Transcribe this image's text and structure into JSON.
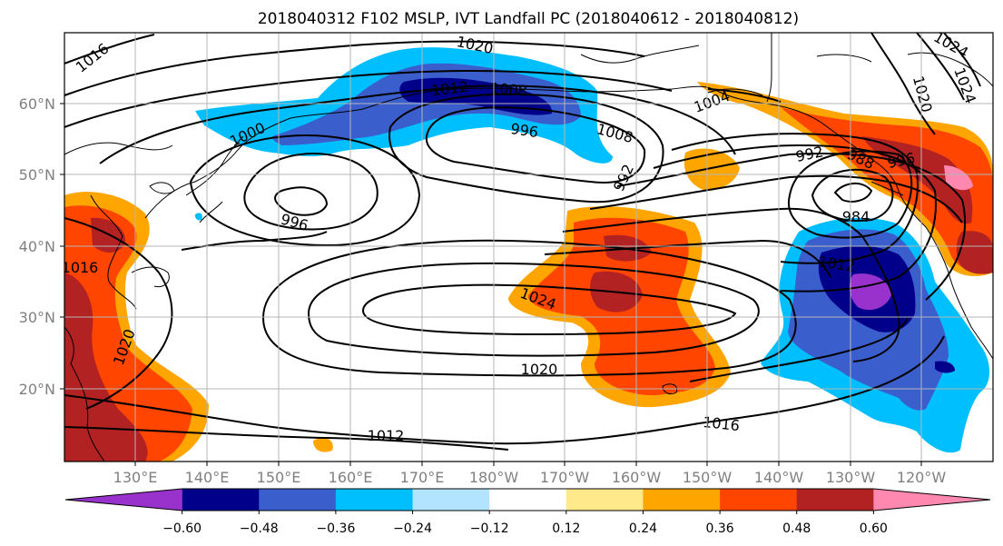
{
  "title": "2018040312 F102 MSLP, IVT Landfall PC (2018040612 - 2018040812)",
  "map": {
    "lon_ticks": [
      "130°E",
      "140°E",
      "150°E",
      "160°E",
      "170°E",
      "180°W",
      "170°W",
      "160°W",
      "150°W",
      "140°W",
      "130°W",
      "120°W"
    ],
    "lat_ticks": [
      "20°N",
      "30°N",
      "40°N",
      "50°N",
      "60°N"
    ],
    "grid": true,
    "tick_color": "#808080"
  },
  "colorbar": {
    "colors": [
      "#9932CC",
      "#00008B",
      "#3A5FCD",
      "#00BFFF",
      "#B2E3FF",
      "#FFFFFF",
      "#FFE98A",
      "#FFA500",
      "#FF4500",
      "#B22222",
      "#FF88B0"
    ],
    "tick_labels": [
      "−0.60",
      "−0.48",
      "−0.36",
      "−0.24",
      "−0.12",
      "0.12",
      "0.24",
      "0.36",
      "0.48",
      "0.60"
    ],
    "extend": "both"
  },
  "isobar_labels": [
    {
      "text": "1016",
      "name": "isobar-label-1016-northwest"
    },
    {
      "text": "1020",
      "name": "isobar-label-1020-north"
    },
    {
      "text": "1012",
      "name": "isobar-label-1012-bering"
    },
    {
      "text": "1008",
      "name": "isobar-label-1008-bering"
    },
    {
      "text": "996",
      "name": "isobar-label-996-bering"
    },
    {
      "text": "1008",
      "name": "isobar-label-1008-alaska"
    },
    {
      "text": "1004",
      "name": "isobar-label-1004-gulf"
    },
    {
      "text": "1024",
      "name": "isobar-label-1024-northeast"
    },
    {
      "text": "1020",
      "name": "isobar-label-1020-northeast"
    },
    {
      "text": "1024",
      "name": "isobar-label-1024-east"
    },
    {
      "text": "1000",
      "name": "isobar-label-1000-kamchatka"
    },
    {
      "text": "992",
      "name": "isobar-label-992-aleutian"
    },
    {
      "text": "992",
      "name": "isobar-label-992-east"
    },
    {
      "text": "988",
      "name": "isobar-label-988-east"
    },
    {
      "text": "996",
      "name": "isobar-label-996-east"
    },
    {
      "text": "996",
      "name": "isobar-label-996-west-low"
    },
    {
      "text": "984",
      "name": "isobar-label-984-low"
    },
    {
      "text": "1012",
      "name": "isobar-label-1012-east"
    },
    {
      "text": "1016",
      "name": "isobar-label-1016-west"
    },
    {
      "text": "1024",
      "name": "isobar-label-1024-high"
    },
    {
      "text": "1020",
      "name": "isobar-label-1020-west"
    },
    {
      "text": "1020",
      "name": "isobar-label-1020-south"
    },
    {
      "text": "1016",
      "name": "isobar-label-1016-south"
    },
    {
      "text": "1012",
      "name": "isobar-label-1012-south"
    }
  ]
}
